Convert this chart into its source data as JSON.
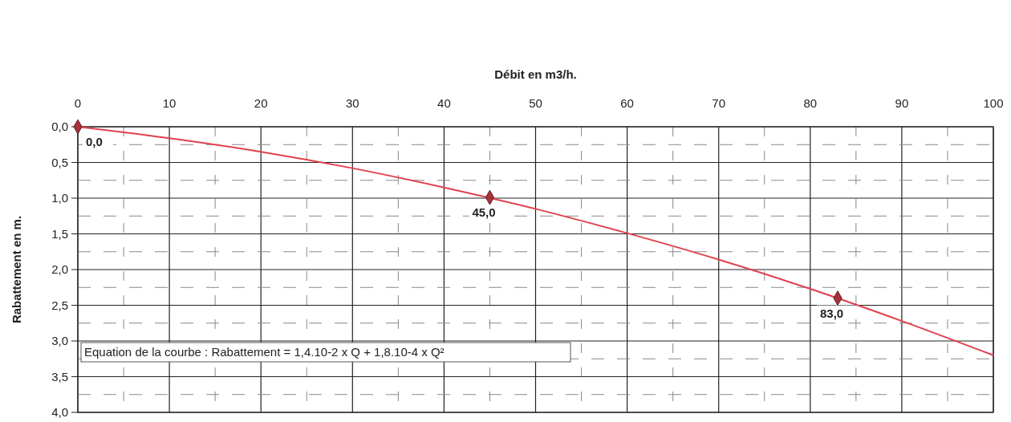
{
  "chart_data": {
    "type": "line",
    "xlabel": "Débit en m3/h.",
    "ylabel": "Rabattement en m.",
    "xlim": [
      0,
      100
    ],
    "xticks": [
      0,
      {
        "value": 5,
        "label": null
      },
      10,
      {
        "value": 15,
        "label": null
      },
      20,
      {
        "value": 25,
        "label": null
      },
      30,
      {
        "value": 35,
        "label": null
      },
      40,
      {
        "value": 45,
        "label": null
      },
      50,
      {
        "value": 55,
        "label": null
      },
      60,
      {
        "value": 65,
        "label": null
      },
      70,
      {
        "value": 75,
        "label": null
      },
      80,
      {
        "value": 85,
        "label": null
      },
      90,
      {
        "value": 95,
        "label": null
      },
      100
    ],
    "ylim": [
      4,
      0
    ],
    "yticks": [
      {
        "value": 0,
        "label": "0,0"
      },
      {
        "value": 0.25,
        "label": null
      },
      {
        "value": 0.5,
        "label": "0,5"
      },
      {
        "value": 0.75,
        "label": null
      },
      {
        "value": 1,
        "label": "1,0"
      },
      {
        "value": 1.25,
        "label": null
      },
      {
        "value": 1.5,
        "label": "1,5"
      },
      {
        "value": 1.75,
        "label": null
      },
      {
        "value": 2,
        "label": "2,0"
      },
      {
        "value": 2.25,
        "label": null
      },
      {
        "value": 2.5,
        "label": "2,5"
      },
      {
        "value": 2.75,
        "label": null
      },
      {
        "value": 3,
        "label": "3,0"
      },
      {
        "value": 3.25,
        "label": null
      },
      {
        "value": 3.5,
        "label": "3,5"
      },
      {
        "value": 3.75,
        "label": null
      },
      {
        "value": 4,
        "label": "4,0"
      }
    ],
    "grid": true,
    "series": [
      {
        "color": "#e0414d",
        "marker": "none",
        "x": [
          0,
          10,
          20,
          30,
          40,
          50,
          60,
          70,
          80,
          90,
          100
        ],
        "values": [
          0,
          0.16,
          0.35,
          0.58,
          0.85,
          1.15,
          1.49,
          1.86,
          2.27,
          2.72,
          3.2
        ]
      },
      {
        "type": "scatter",
        "color": "#a8323c",
        "marker": "diamond",
        "x": [
          0,
          45,
          83
        ],
        "values": [
          0,
          0.99,
          2.4
        ]
      }
    ],
    "annotations": [
      {
        "text": "0,0",
        "x": 0,
        "y": 0
      },
      {
        "text": "45,0",
        "x": 45,
        "y": 0.99
      },
      {
        "text": "83,0",
        "x": 83,
        "y": 2.4
      },
      "Equation de la courbe  :  Rabattement = 1,4.10-2 x Q + 1,8.10-4 x Q²"
    ]
  }
}
